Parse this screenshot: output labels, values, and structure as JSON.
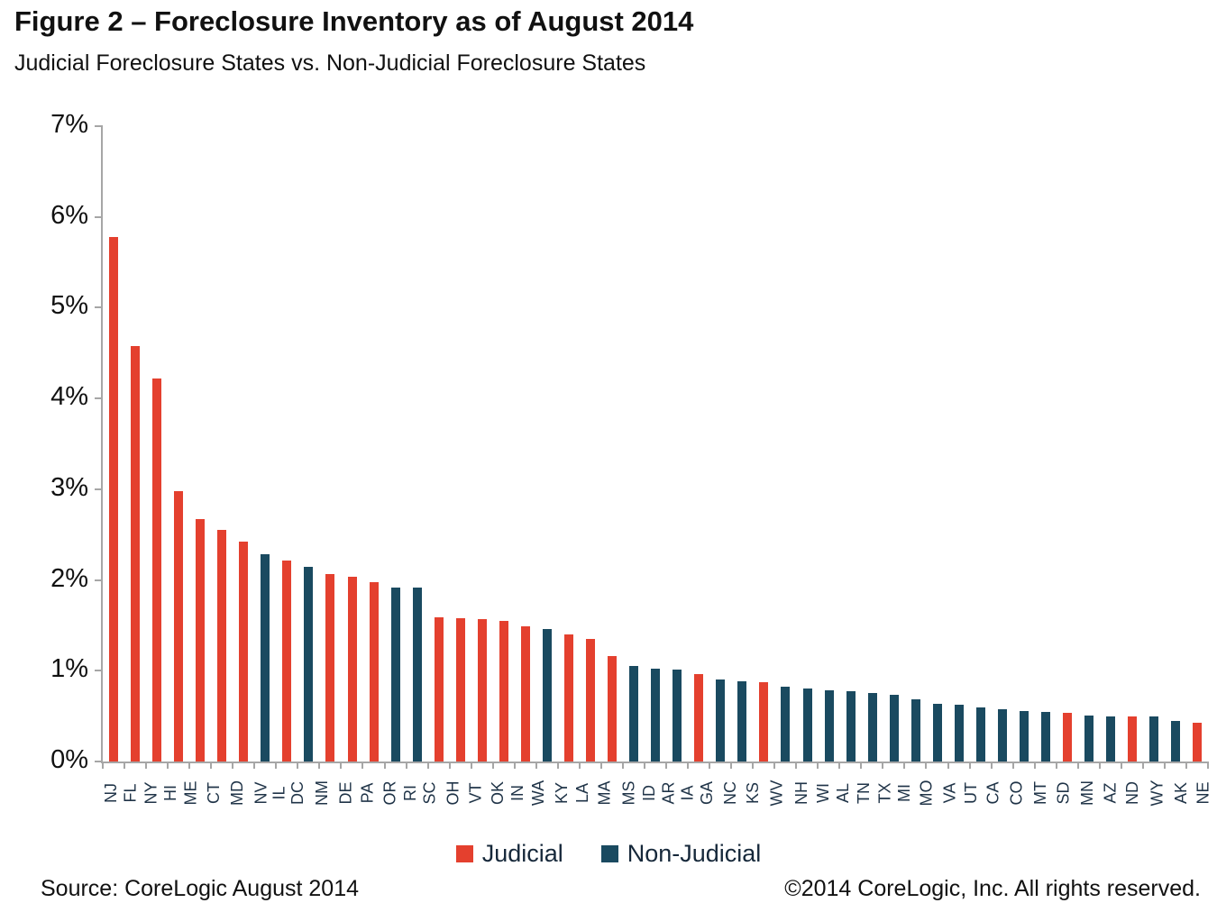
{
  "header": {
    "title": "Figure 2 – Foreclosure Inventory as of August 2014",
    "subtitle": "Judicial Foreclosure States vs. Non-Judicial Foreclosure States"
  },
  "legend": {
    "items": [
      {
        "label": "Judicial",
        "color": "#e4402e"
      },
      {
        "label": "Non-Judicial",
        "color": "#1a4a60"
      }
    ]
  },
  "footer": {
    "source": "Source: CoreLogic  August 2014",
    "copyright": "©2014 CoreLogic, Inc. All rights reserved."
  },
  "chart_data": {
    "type": "bar",
    "title": "Figure 2 – Foreclosure Inventory as of August 2014",
    "subtitle": "Judicial Foreclosure States vs. Non-Judicial Foreclosure States",
    "grid": false,
    "legend_position": "bottom",
    "y_axis": {
      "min": 0,
      "max": 7,
      "tick_step": 1,
      "tick_labels": [
        "0%",
        "1%",
        "2%",
        "3%",
        "4%",
        "5%",
        "6%",
        "7%"
      ]
    },
    "series": [
      {
        "name": "Judicial",
        "color": "#e4402e"
      },
      {
        "name": "Non-Judicial",
        "color": "#1a4a60"
      }
    ],
    "categories": [
      "NJ",
      "FL",
      "NY",
      "HI",
      "ME",
      "CT",
      "MD",
      "NV",
      "IL",
      "DC",
      "NM",
      "DE",
      "PA",
      "OR",
      "RI",
      "SC",
      "OH",
      "VT",
      "OK",
      "IN",
      "WA",
      "KY",
      "LA",
      "MA",
      "MS",
      "ID",
      "AR",
      "IA",
      "GA",
      "NC",
      "KS",
      "WV",
      "NH",
      "WI",
      "AL",
      "TN",
      "TX",
      "MI",
      "MO",
      "VA",
      "UT",
      "CA",
      "CO",
      "MT",
      "SD",
      "MN",
      "AZ",
      "ND",
      "WY",
      "AK",
      "NE"
    ],
    "points": [
      {
        "state": "NJ",
        "value": 5.78,
        "series": "Judicial"
      },
      {
        "state": "FL",
        "value": 4.58,
        "series": "Judicial"
      },
      {
        "state": "NY",
        "value": 4.22,
        "series": "Judicial"
      },
      {
        "state": "HI",
        "value": 2.98,
        "series": "Judicial"
      },
      {
        "state": "ME",
        "value": 2.67,
        "series": "Judicial"
      },
      {
        "state": "CT",
        "value": 2.55,
        "series": "Judicial"
      },
      {
        "state": "MD",
        "value": 2.42,
        "series": "Judicial"
      },
      {
        "state": "NV",
        "value": 2.28,
        "series": "Non-Judicial"
      },
      {
        "state": "IL",
        "value": 2.21,
        "series": "Judicial"
      },
      {
        "state": "DC",
        "value": 2.14,
        "series": "Non-Judicial"
      },
      {
        "state": "NM",
        "value": 2.07,
        "series": "Judicial"
      },
      {
        "state": "DE",
        "value": 2.04,
        "series": "Judicial"
      },
      {
        "state": "PA",
        "value": 1.98,
        "series": "Judicial"
      },
      {
        "state": "OR",
        "value": 1.92,
        "series": "Non-Judicial"
      },
      {
        "state": "RI",
        "value": 1.92,
        "series": "Non-Judicial"
      },
      {
        "state": "SC",
        "value": 1.59,
        "series": "Judicial"
      },
      {
        "state": "OH",
        "value": 1.58,
        "series": "Judicial"
      },
      {
        "state": "VT",
        "value": 1.57,
        "series": "Judicial"
      },
      {
        "state": "OK",
        "value": 1.55,
        "series": "Judicial"
      },
      {
        "state": "IN",
        "value": 1.49,
        "series": "Judicial"
      },
      {
        "state": "WA",
        "value": 1.46,
        "series": "Non-Judicial"
      },
      {
        "state": "KY",
        "value": 1.4,
        "series": "Judicial"
      },
      {
        "state": "LA",
        "value": 1.35,
        "series": "Judicial"
      },
      {
        "state": "MA",
        "value": 1.16,
        "series": "Judicial"
      },
      {
        "state": "MS",
        "value": 1.05,
        "series": "Non-Judicial"
      },
      {
        "state": "ID",
        "value": 1.02,
        "series": "Non-Judicial"
      },
      {
        "state": "AR",
        "value": 1.01,
        "series": "Non-Judicial"
      },
      {
        "state": "IA",
        "value": 0.96,
        "series": "Judicial"
      },
      {
        "state": "GA",
        "value": 0.9,
        "series": "Non-Judicial"
      },
      {
        "state": "NC",
        "value": 0.88,
        "series": "Non-Judicial"
      },
      {
        "state": "KS",
        "value": 0.87,
        "series": "Judicial"
      },
      {
        "state": "WV",
        "value": 0.82,
        "series": "Non-Judicial"
      },
      {
        "state": "NH",
        "value": 0.8,
        "series": "Non-Judicial"
      },
      {
        "state": "WI",
        "value": 0.78,
        "series": "Non-Judicial"
      },
      {
        "state": "AL",
        "value": 0.77,
        "series": "Non-Judicial"
      },
      {
        "state": "TN",
        "value": 0.75,
        "series": "Non-Judicial"
      },
      {
        "state": "TX",
        "value": 0.73,
        "series": "Non-Judicial"
      },
      {
        "state": "MI",
        "value": 0.69,
        "series": "Non-Judicial"
      },
      {
        "state": "MO",
        "value": 0.64,
        "series": "Non-Judicial"
      },
      {
        "state": "VA",
        "value": 0.63,
        "series": "Non-Judicial"
      },
      {
        "state": "UT",
        "value": 0.6,
        "series": "Non-Judicial"
      },
      {
        "state": "CA",
        "value": 0.58,
        "series": "Non-Judicial"
      },
      {
        "state": "CO",
        "value": 0.56,
        "series": "Non-Judicial"
      },
      {
        "state": "MT",
        "value": 0.55,
        "series": "Non-Judicial"
      },
      {
        "state": "SD",
        "value": 0.54,
        "series": "Judicial"
      },
      {
        "state": "MN",
        "value": 0.51,
        "series": "Non-Judicial"
      },
      {
        "state": "AZ",
        "value": 0.5,
        "series": "Non-Judicial"
      },
      {
        "state": "ND",
        "value": 0.5,
        "series": "Judicial"
      },
      {
        "state": "WY",
        "value": 0.5,
        "series": "Non-Judicial"
      },
      {
        "state": "AK",
        "value": 0.45,
        "series": "Non-Judicial"
      },
      {
        "state": "NE",
        "value": 0.43,
        "series": "Judicial"
      }
    ]
  }
}
